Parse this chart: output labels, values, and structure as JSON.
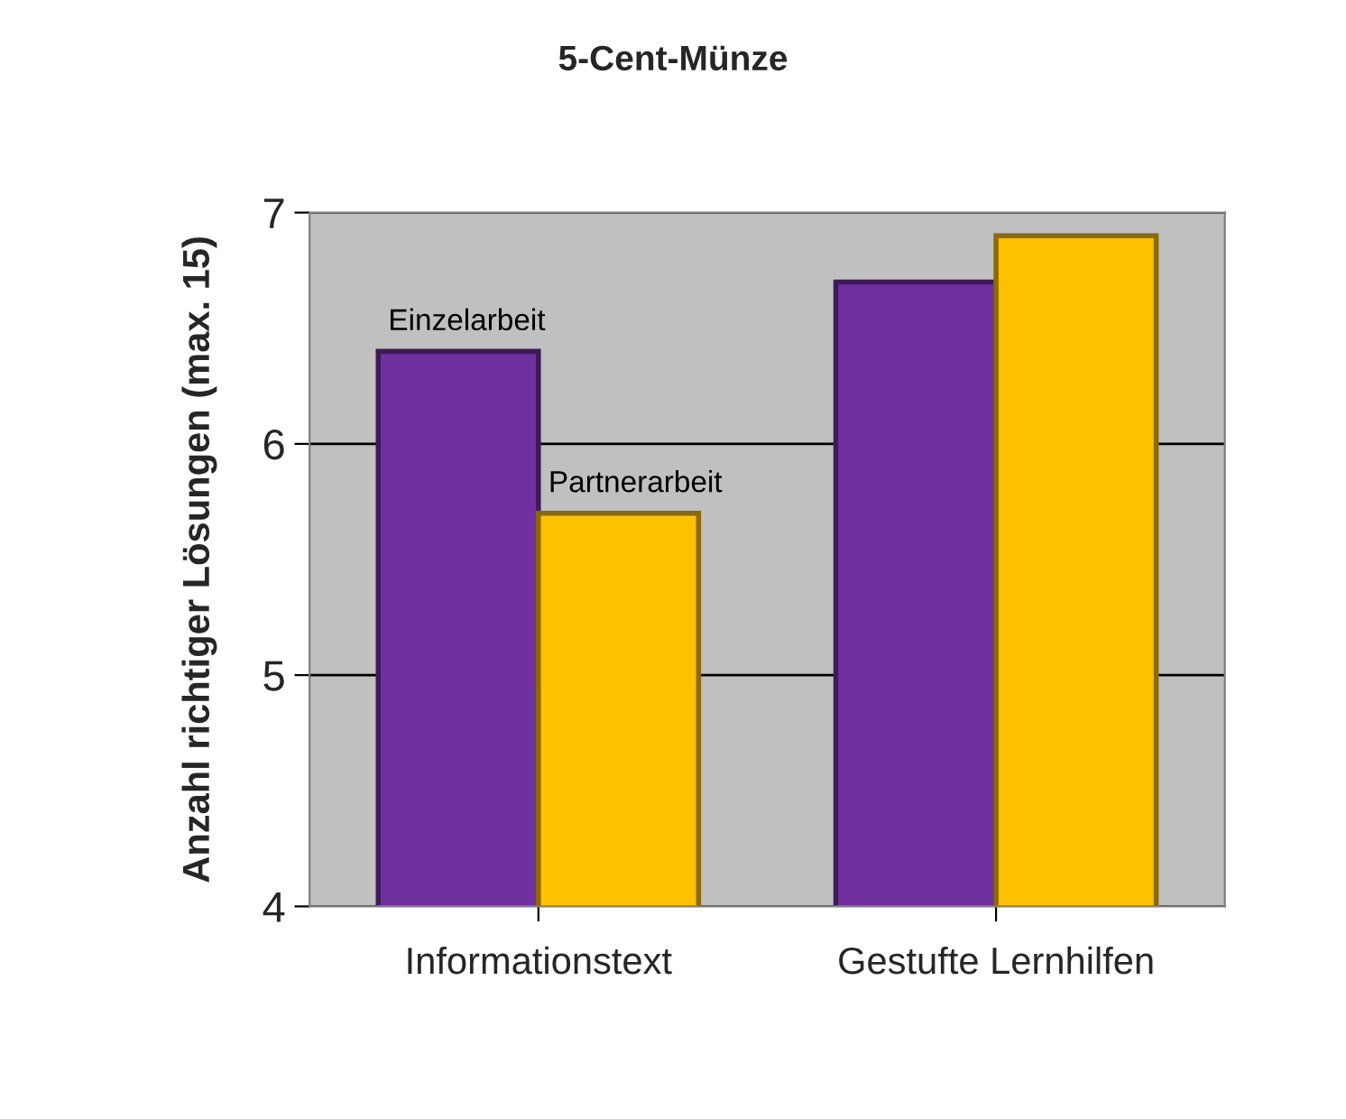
{
  "chart_data": {
    "type": "bar",
    "title": "5-Cent-Münze",
    "ylabel": "Anzahl richtiger Lösungen (max. 15)",
    "categories": [
      "Informationstext",
      "Gestufte Lernhilfen"
    ],
    "series": [
      {
        "name": "Einzelarbeit",
        "color": "#7030a0",
        "values": [
          6.4,
          6.7
        ]
      },
      {
        "name": "Partnerarbeit",
        "color": "#ffc000",
        "values": [
          5.7,
          6.9
        ]
      }
    ],
    "ylim": [
      4,
      7
    ],
    "yticks": [
      4,
      5,
      6,
      7
    ],
    "grid": "y"
  }
}
